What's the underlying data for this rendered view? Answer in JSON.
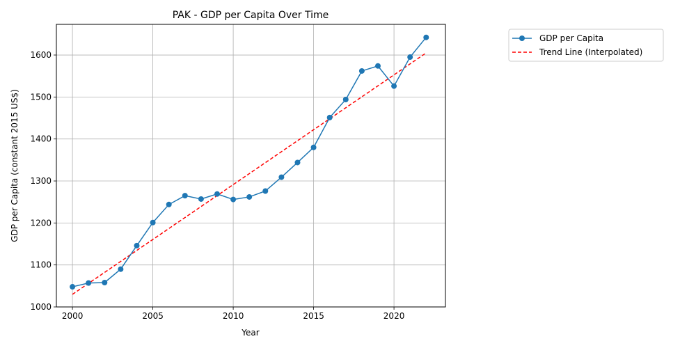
{
  "chart_data": {
    "type": "line",
    "title": "PAK - GDP per Capita Over Time",
    "xlabel": "Year",
    "ylabel": "GDP per Capita (constant 2015 US$)",
    "xlim": [
      1999.0,
      2023.2
    ],
    "ylim": [
      1000,
      1673
    ],
    "xticks": [
      2000,
      2005,
      2010,
      2015,
      2020
    ],
    "yticks": [
      1000,
      1100,
      1200,
      1300,
      1400,
      1500,
      1600
    ],
    "grid": true,
    "legend_position": "outside-top-right",
    "x": [
      2000,
      2001,
      2002,
      2003,
      2004,
      2005,
      2006,
      2007,
      2008,
      2009,
      2010,
      2011,
      2012,
      2013,
      2014,
      2015,
      2016,
      2017,
      2018,
      2019,
      2020,
      2021,
      2022
    ],
    "series": [
      {
        "name": "GDP per Capita",
        "style": "solid-with-markers",
        "color": "#1f77b4",
        "values": [
          1048,
          1057,
          1058,
          1090,
          1146,
          1201,
          1244,
          1265,
          1257,
          1269,
          1256,
          1262,
          1276,
          1309,
          1344,
          1380,
          1451,
          1494,
          1562,
          1574,
          1526,
          1595,
          1642
        ]
      },
      {
        "name": "Trend Line (Interpolated)",
        "style": "dashed",
        "color": "#ff0000",
        "x_range": [
          2000,
          2022
        ],
        "values_at_ends": [
          1030,
          1605
        ]
      }
    ]
  }
}
